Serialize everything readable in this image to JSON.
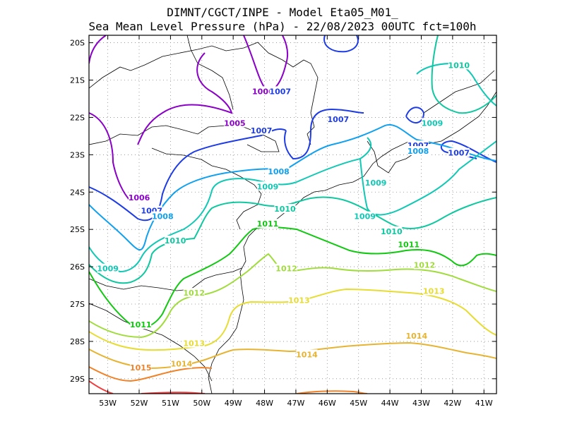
{
  "title": {
    "line1": "DIMNT/CGCT/INPE -  Model Eta05_M01_",
    "line2": "Sea Mean Level Pressure (hPa) - 22/08/2023 00UTC fct=100h"
  },
  "axes": {
    "x_ticks": [
      "53W",
      "52W",
      "51W",
      "50W",
      "49W",
      "48W",
      "47W",
      "46W",
      "45W",
      "44W",
      "43W",
      "42W",
      "41W"
    ],
    "y_ticks": [
      "20S",
      "21S",
      "22S",
      "23S",
      "24S",
      "25S",
      "26S",
      "27S",
      "28S",
      "29S"
    ],
    "xlim": [
      -53.6,
      -40.6
    ],
    "ylim": [
      -29.4,
      -19.8
    ],
    "grid": true
  },
  "chart_data": {
    "type": "contour",
    "variable": "Sea Mean Level Pressure (hPa)",
    "levels": [
      {
        "value": "1005",
        "color": "#8b00c8"
      },
      {
        "value": "1006",
        "color": "#8b00c8"
      },
      {
        "value": "1007",
        "color": "#1e3ce6"
      },
      {
        "value": "1008",
        "color": "#10a0f0"
      },
      {
        "value": "1009",
        "color": "#10c8b4"
      },
      {
        "value": "1010",
        "color": "#10c8a0"
      },
      {
        "value": "1011",
        "color": "#10c810"
      },
      {
        "value": "1012",
        "color": "#a0dc3c"
      },
      {
        "value": "1013",
        "color": "#e6dc32"
      },
      {
        "value": "1014",
        "color": "#e6b432"
      },
      {
        "value": "1015",
        "color": "#f08228"
      },
      {
        "value": "1016",
        "color": "#f03c3c"
      }
    ],
    "labels": [
      {
        "text": "1005",
        "lon": -48.95,
        "lat": -22.15,
        "color": "#8b00c8"
      },
      {
        "text": "1006",
        "lon": -48.05,
        "lat": -21.3,
        "color": "#8b00c8"
      },
      {
        "text": "1006",
        "lon": -52.0,
        "lat": -24.15,
        "color": "#8b00c8"
      },
      {
        "text": "1007",
        "lon": -47.5,
        "lat": -21.3,
        "color": "#1e3ce6"
      },
      {
        "text": "1007",
        "lon": -45.65,
        "lat": -22.05,
        "color": "#1e3ce6"
      },
      {
        "text": "1007",
        "lon": -48.1,
        "lat": -22.35,
        "color": "#1e3ce6"
      },
      {
        "text": "1007",
        "lon": -43.1,
        "lat": -22.75,
        "color": "#1e3ce6"
      },
      {
        "text": "1007",
        "lon": -41.8,
        "lat": -22.95,
        "color": "#1e3ce6"
      },
      {
        "text": "1007",
        "lon": -51.6,
        "lat": -24.5,
        "color": "#1e3ce6"
      },
      {
        "text": "1008",
        "lon": -43.1,
        "lat": -22.9,
        "color": "#10a0f0"
      },
      {
        "text": "1008",
        "lon": -47.55,
        "lat": -23.45,
        "color": "#10a0f0"
      },
      {
        "text": "1008",
        "lon": -51.25,
        "lat": -24.65,
        "color": "#10a0f0"
      },
      {
        "text": "1009",
        "lon": -47.9,
        "lat": -23.85,
        "color": "#10c8b4"
      },
      {
        "text": "1009",
        "lon": -44.45,
        "lat": -23.75,
        "color": "#10c8b4"
      },
      {
        "text": "1009",
        "lon": -42.65,
        "lat": -22.15,
        "color": "#10c8b4"
      },
      {
        "text": "1009",
        "lon": -44.8,
        "lat": -24.65,
        "color": "#10c8b4"
      },
      {
        "text": "1009",
        "lon": -53.0,
        "lat": -26.05,
        "color": "#10c8b4"
      },
      {
        "text": "1010",
        "lon": -41.8,
        "lat": -20.6,
        "color": "#10c8a0"
      },
      {
        "text": "1010",
        "lon": -47.35,
        "lat": -24.45,
        "color": "#10c8a0"
      },
      {
        "text": "1010",
        "lon": -43.95,
        "lat": -25.05,
        "color": "#10c8a0"
      },
      {
        "text": "1010",
        "lon": -50.85,
        "lat": -25.3,
        "color": "#10c8a0"
      },
      {
        "text": "1011",
        "lon": -47.9,
        "lat": -24.85,
        "color": "#10c810"
      },
      {
        "text": "1011",
        "lon": -43.4,
        "lat": -25.4,
        "color": "#10c810"
      },
      {
        "text": "1011",
        "lon": -51.95,
        "lat": -27.55,
        "color": "#10c810"
      },
      {
        "text": "1012",
        "lon": -47.3,
        "lat": -26.05,
        "color": "#a0dc3c"
      },
      {
        "text": "1012",
        "lon": -42.9,
        "lat": -25.95,
        "color": "#a0dc3c"
      },
      {
        "text": "1012",
        "lon": -50.25,
        "lat": -26.7,
        "color": "#a0dc3c"
      },
      {
        "text": "1013",
        "lon": -46.9,
        "lat": -26.9,
        "color": "#e6dc32"
      },
      {
        "text": "1013",
        "lon": -42.6,
        "lat": -26.65,
        "color": "#e6dc32"
      },
      {
        "text": "1013",
        "lon": -50.25,
        "lat": -28.05,
        "color": "#e6dc32"
      },
      {
        "text": "1014",
        "lon": -46.65,
        "lat": -28.35,
        "color": "#e6b432"
      },
      {
        "text": "1014",
        "lon": -43.15,
        "lat": -27.85,
        "color": "#e6b432"
      },
      {
        "text": "1014",
        "lon": -50.65,
        "lat": -28.6,
        "color": "#e6b432"
      },
      {
        "text": "1015",
        "lon": -51.95,
        "lat": -28.7,
        "color": "#f08228"
      }
    ]
  }
}
